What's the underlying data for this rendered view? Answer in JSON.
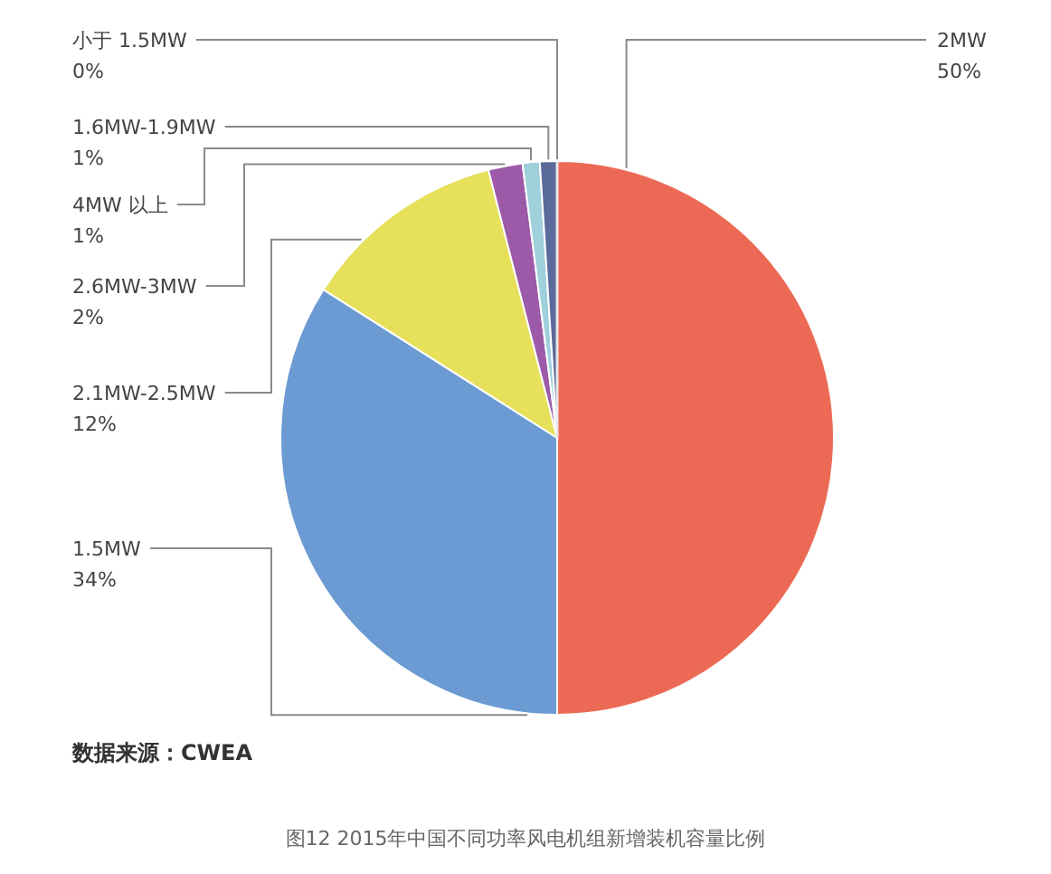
{
  "chart_data": {
    "type": "pie",
    "title": "图12 2015年中国不同功率风电机组新增装机容量比例",
    "categories": [
      "2MW",
      "1.5MW",
      "2.1MW-2.5MW",
      "2.6MW-3MW",
      "4MW 以上",
      "1.6MW-1.9MW",
      "小于 1.5MW"
    ],
    "values": [
      50,
      34,
      12,
      2,
      1,
      1,
      0
    ],
    "value_labels": [
      "50%",
      "34%",
      "12%",
      "2%",
      "1%",
      "1%",
      "0%"
    ],
    "colors": [
      "#ec6a55",
      "#6b9bd2",
      "#e6e05a",
      "#9c5aa8",
      "#9fd0dc",
      "#5a6a9a",
      "#e8e8e8"
    ],
    "annotations": [
      "数据来源：CWEA"
    ],
    "legend": false
  }
}
